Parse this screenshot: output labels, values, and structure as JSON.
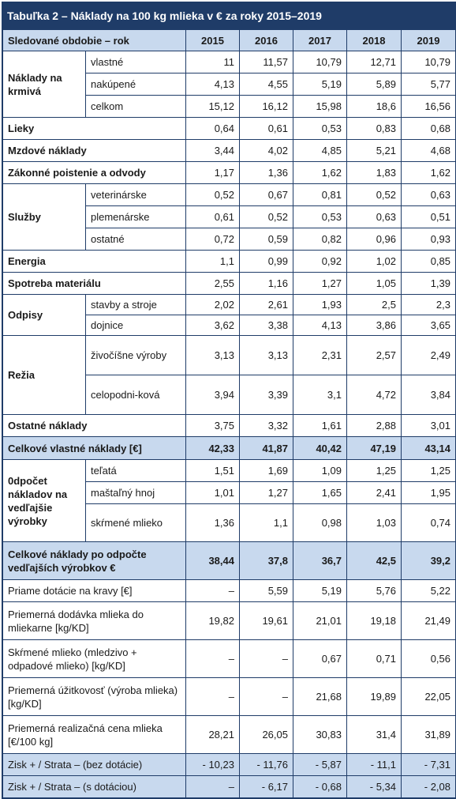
{
  "title": "Tabuľka 2 – Náklady na 100 kg mlieka v € za roky 2015–2019",
  "header": {
    "label": "Sledované obdobie – rok",
    "years": [
      "2015",
      "2016",
      "2017",
      "2018",
      "2019"
    ]
  },
  "sections": {
    "krmiva": {
      "label": "Náklady na krmivá",
      "rows": [
        {
          "label": "vlastné",
          "values": [
            "11",
            "11,57",
            "10,79",
            "12,71",
            "10,79"
          ]
        },
        {
          "label": "nakúpené",
          "values": [
            "4,13",
            "4,55",
            "5,19",
            "5,89",
            "5,77"
          ]
        },
        {
          "label": "celkom",
          "values": [
            "15,12",
            "16,12",
            "15,98",
            "18,6",
            "16,56"
          ]
        }
      ]
    },
    "lieky": {
      "label": "Lieky",
      "values": [
        "0,64",
        "0,61",
        "0,53",
        "0,83",
        "0,68"
      ]
    },
    "mzdove": {
      "label": "Mzdové náklady",
      "values": [
        "3,44",
        "4,02",
        "4,85",
        "5,21",
        "4,68"
      ]
    },
    "zakonne": {
      "label": "Zákonné poistenie a odvody",
      "values": [
        "1,17",
        "1,36",
        "1,62",
        "1,83",
        "1,62"
      ]
    },
    "sluzby": {
      "label": "Služby",
      "rows": [
        {
          "label": "veterinárske",
          "values": [
            "0,52",
            "0,67",
            "0,81",
            "0,52",
            "0,63"
          ]
        },
        {
          "label": "plemenárske",
          "values": [
            "0,61",
            "0,52",
            "0,53",
            "0,63",
            "0,51"
          ]
        },
        {
          "label": "ostatné",
          "values": [
            "0,72",
            "0,59",
            "0,82",
            "0,96",
            "0,93"
          ]
        }
      ]
    },
    "energia": {
      "label": "Energia",
      "values": [
        "1,1",
        "0,99",
        "0,92",
        "1,02",
        "0,85"
      ]
    },
    "spotreba": {
      "label": "Spotreba materiálu",
      "values": [
        "2,55",
        "1,16",
        "1,27",
        "1,05",
        "1,39"
      ]
    },
    "odpisy": {
      "label": "Odpisy",
      "rows": [
        {
          "label": "stavby a stroje",
          "values": [
            "2,02",
            "2,61",
            "1,93",
            "2,5",
            "2,3"
          ]
        },
        {
          "label": "dojnice",
          "values": [
            "3,62",
            "3,38",
            "4,13",
            "3,86",
            "3,65"
          ]
        }
      ]
    },
    "rezia": {
      "label": "Režia",
      "rows": [
        {
          "label": "živočíšne výroby",
          "values": [
            "3,13",
            "3,13",
            "2,31",
            "2,57",
            "2,49"
          ]
        },
        {
          "label": "celopodni-ková",
          "values": [
            "3,94",
            "3,39",
            "3,1",
            "4,72",
            "3,84"
          ]
        }
      ]
    },
    "ostatne": {
      "label": "Ostatné náklady",
      "values": [
        "3,75",
        "3,32",
        "1,61",
        "2,88",
        "3,01"
      ]
    },
    "celkove_vlastne": {
      "label": "Celkové vlastné náklady [€]",
      "values": [
        "42,33",
        "41,87",
        "40,42",
        "47,19",
        "43,14"
      ]
    },
    "odpocet": {
      "label": "0dpočet nákladov na vedľajšie výrobky",
      "rows": [
        {
          "label": "teľatá",
          "values": [
            "1,51",
            "1,69",
            "1,09",
            "1,25",
            "1,25"
          ]
        },
        {
          "label": "maštaľný hnoj",
          "values": [
            "1,01",
            "1,27",
            "1,65",
            "2,41",
            "1,95"
          ]
        },
        {
          "label": "skŕmené mlieko",
          "values": [
            "1,36",
            "1,1",
            "0,98",
            "1,03",
            "0,74"
          ]
        }
      ]
    },
    "celkove_po": {
      "label": "Celkové náklady po odpočte vedľajších výrobkov  €",
      "values": [
        "38,44",
        "37,8",
        "36,7",
        "42,5",
        "39,2"
      ]
    },
    "dotacie": {
      "label": "Priame dotácie na kravy [€]",
      "values": [
        "–",
        "5,59",
        "5,19",
        "5,76",
        "5,22"
      ]
    },
    "dodavka": {
      "label": "Priemerná dodávka mlieka do mliekarne [kg/KD]",
      "values": [
        "19,82",
        "19,61",
        "21,01",
        "19,18",
        "21,49"
      ]
    },
    "skrmene": {
      "label": "Skŕmené mlieko (mledzivo + odpadové mlieko) [kg/KD]",
      "values": [
        "–",
        "–",
        "0,67",
        "0,71",
        "0,56"
      ]
    },
    "uzitkovost": {
      "label": "Priemerná úžitkovosť (výroba mlieka) [kg/KD]",
      "values": [
        "–",
        "–",
        "21,68",
        "19,89",
        "22,05"
      ]
    },
    "cena": {
      "label": "Priemerná realizačná cena mlieka [€/100 kg]",
      "values": [
        "28,21",
        "26,05",
        "30,83",
        "31,4",
        "31,89"
      ]
    },
    "zisk_bez": {
      "label": "Zisk + / Strata – (bez dotácie)",
      "values": [
        "- 10,23",
        "- 11,76",
        "- 5,87",
        "- 11,1",
        "- 7,31"
      ]
    },
    "zisk_s": {
      "label": "Zisk + / Strata – (s dotáciou)",
      "values": [
        "–",
        "- 6,17",
        "- 0,68",
        "- 5,34",
        "- 2,08"
      ]
    }
  }
}
